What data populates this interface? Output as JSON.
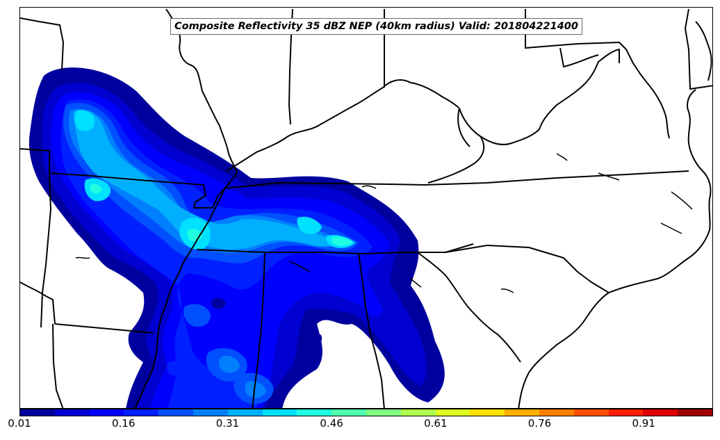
{
  "map": {
    "title": "Composite Reflectivity 35 dBZ NEP (40km radius) Valid: 201804221400",
    "colorbar": {
      "colors": [
        "#00009f",
        "#0000d0",
        "#0000ff",
        "#0020ff",
        "#0050ff",
        "#0080ff",
        "#00b0ff",
        "#00e0ff",
        "#20ffdf",
        "#50ffaf",
        "#80ff80",
        "#b0ff50",
        "#dfff20",
        "#ffe000",
        "#ffb000",
        "#ff8000",
        "#ff5000",
        "#ff2000",
        "#df0000",
        "#9f0000"
      ],
      "tick_labels": [
        "0.01",
        "0.16",
        "0.31",
        "0.46",
        "0.61",
        "0.76",
        "0.91"
      ],
      "min": 0.01,
      "max": 1.01
    },
    "tick_values": [
      0.01,
      0.16,
      0.31,
      0.46,
      0.61,
      0.76,
      0.91
    ]
  }
}
